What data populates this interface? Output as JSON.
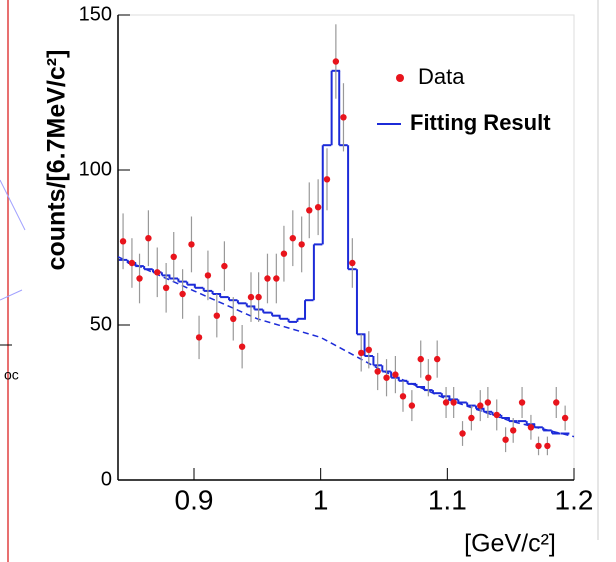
{
  "chart_data": {
    "type": "scatter",
    "y_label": "counts/[6.7MeV/c²]",
    "x_label": "[GeV/c²]",
    "xlim": [
      0.84,
      1.2
    ],
    "xticks": [
      0.9,
      1,
      1.1,
      1.2
    ],
    "ylim": [
      0,
      150
    ],
    "yticks": [
      0,
      50,
      100,
      150
    ],
    "legend": "upper right",
    "series": [
      {
        "name": "Data",
        "color": "#e8141c",
        "style": "points",
        "x": [
          0.844,
          0.851,
          0.857,
          0.864,
          0.871,
          0.878,
          0.884,
          0.891,
          0.898,
          0.904,
          0.911,
          0.918,
          0.924,
          0.931,
          0.938,
          0.945,
          0.951,
          0.958,
          0.965,
          0.971,
          0.978,
          0.985,
          0.991,
          0.998,
          1.005,
          1.012,
          1.018,
          1.025,
          1.032,
          1.038,
          1.045,
          1.052,
          1.059,
          1.065,
          1.072,
          1.079,
          1.085,
          1.092,
          1.099,
          1.105,
          1.112,
          1.119,
          1.126,
          1.132,
          1.139,
          1.146,
          1.152,
          1.159,
          1.166,
          1.172,
          1.179,
          1.186,
          1.193
        ],
        "values": [
          77,
          70,
          65,
          78,
          67,
          62,
          72,
          60,
          76,
          46,
          66,
          53,
          69,
          52,
          43,
          59,
          59,
          65,
          65,
          73,
          78,
          76,
          87,
          88,
          97,
          135,
          117,
          70,
          41,
          42,
          35,
          33,
          34,
          27,
          24,
          39,
          33,
          39,
          25,
          25,
          15,
          20,
          24,
          25,
          21,
          13,
          16,
          25,
          17,
          11,
          11,
          25,
          20
        ],
        "errors": [
          9,
          8,
          8,
          9,
          8,
          8,
          8,
          8,
          9,
          7,
          8,
          7,
          8,
          7,
          7,
          8,
          8,
          8,
          8,
          9,
          9,
          9,
          9,
          9,
          10,
          12,
          11,
          8,
          6,
          6,
          6,
          6,
          6,
          5,
          5,
          6,
          6,
          6,
          5,
          5,
          4,
          4,
          5,
          5,
          5,
          4,
          4,
          5,
          4,
          3,
          3,
          5,
          4
        ]
      },
      {
        "name": "Fitting Result",
        "color": "#1c2bd8",
        "style": "step",
        "x": [
          0.844,
          0.851,
          0.857,
          0.864,
          0.871,
          0.878,
          0.884,
          0.891,
          0.898,
          0.904,
          0.911,
          0.918,
          0.924,
          0.931,
          0.938,
          0.945,
          0.951,
          0.958,
          0.965,
          0.971,
          0.978,
          0.985,
          0.991,
          0.998,
          1.005,
          1.012,
          1.018,
          1.025,
          1.032,
          1.038,
          1.045,
          1.052,
          1.059,
          1.065,
          1.072,
          1.079,
          1.085,
          1.092,
          1.099,
          1.105,
          1.112,
          1.119,
          1.126,
          1.132,
          1.139,
          1.146,
          1.152,
          1.159,
          1.166,
          1.172,
          1.179,
          1.186,
          1.193
        ],
        "bin_width": 0.0067,
        "values": [
          71,
          70,
          69,
          68,
          67,
          66,
          65,
          64,
          63,
          62,
          61,
          60,
          59,
          58,
          57,
          56,
          55,
          54,
          53,
          52,
          51,
          52,
          58,
          76,
          108,
          132,
          108,
          68,
          47,
          40,
          37,
          35,
          33,
          32,
          31,
          30,
          29,
          28,
          27,
          26,
          25,
          24,
          23,
          22,
          21,
          20,
          19,
          19,
          18,
          17,
          16,
          15,
          15
        ]
      },
      {
        "color": "#1c2bd8",
        "style": "dashed",
        "x": [
          0.84,
          0.9,
          0.95,
          1.0,
          1.05,
          1.1,
          1.15,
          1.2
        ],
        "values": [
          72,
          61,
          52,
          46,
          35,
          26,
          19,
          14
        ]
      }
    ]
  },
  "side_fragment": "oc"
}
